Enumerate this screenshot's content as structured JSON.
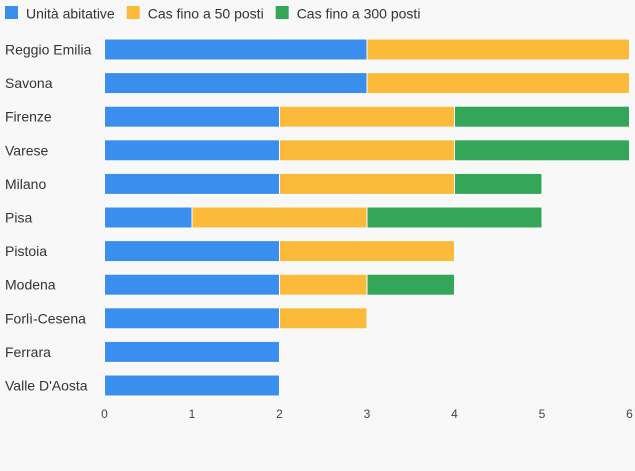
{
  "chart_data": {
    "type": "bar",
    "orientation": "horizontal",
    "stacked": true,
    "categories": [
      "Reggio Emilia",
      "Savona",
      "Firenze",
      "Varese",
      "Milano",
      "Pisa",
      "Pistoia",
      "Modena",
      "Forlì-Cesena",
      "Ferrara",
      "Valle D'Aosta"
    ],
    "series": [
      {
        "name": "Unità abitative",
        "color": "#3a8eee",
        "values": [
          3,
          3,
          2,
          2,
          2,
          1,
          2,
          2,
          2,
          2,
          2
        ]
      },
      {
        "name": "Cas fino a 50 posti",
        "color": "#fbba3a",
        "values": [
          3,
          3,
          2,
          2,
          2,
          2,
          2,
          1,
          1,
          0,
          0
        ]
      },
      {
        "name": "Cas fino a 300 posti",
        "color": "#34a65a",
        "values": [
          0,
          0,
          2,
          2,
          1,
          2,
          0,
          1,
          0,
          0,
          0
        ]
      }
    ],
    "xlim": [
      0,
      6
    ],
    "xticks": [
      "0",
      "1",
      "2",
      "3",
      "4",
      "5",
      "6"
    ],
    "title": "",
    "xlabel": "",
    "ylabel": "",
    "legend_position": "top-left",
    "grid": false
  }
}
